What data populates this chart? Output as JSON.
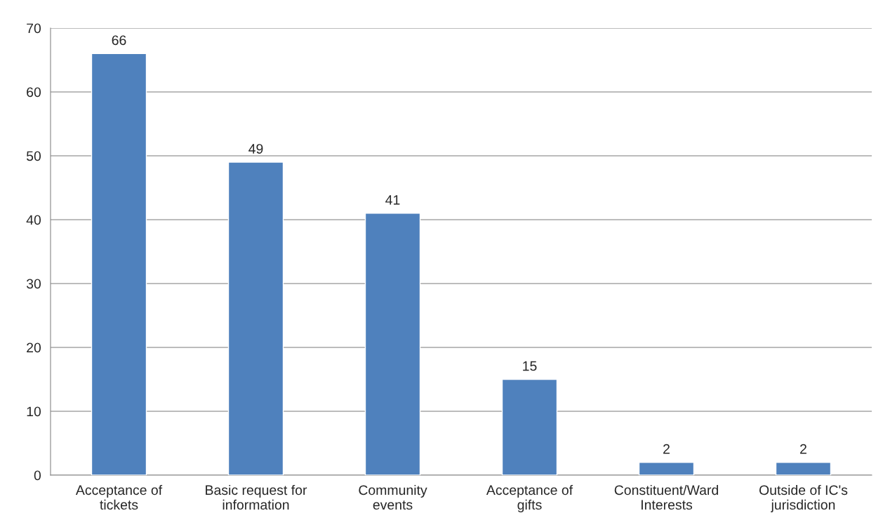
{
  "chart_data": {
    "type": "bar",
    "categories": [
      "Acceptance of\ntickets",
      "Basic request for\ninformation",
      "Community\nevents",
      "Acceptance of\ngifts",
      "Constituent/Ward\nInterests",
      "Outside of IC's\njurisdiction"
    ],
    "values": [
      66,
      49,
      41,
      15,
      2,
      2
    ],
    "color": "#4f81bd",
    "ylim": [
      0,
      70
    ],
    "yticks": [
      0,
      10,
      20,
      30,
      40,
      50,
      60,
      70
    ],
    "grid": "y",
    "data_labels": true
  }
}
